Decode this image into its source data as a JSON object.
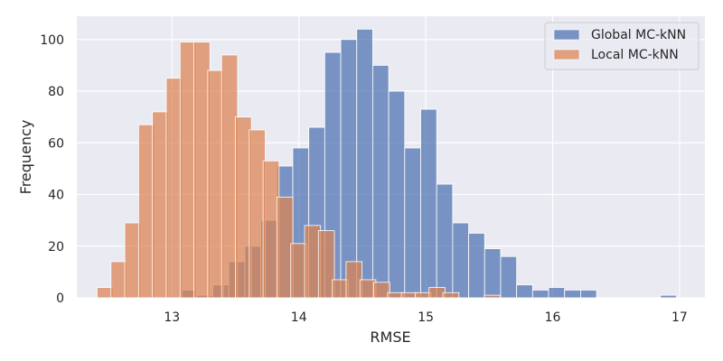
{
  "chart_data": {
    "type": "bar",
    "xlabel": "RMSE",
    "ylabel": "Frequency",
    "xlim": [
      12.25,
      17.2
    ],
    "ylim": [
      0,
      109
    ],
    "x_ticks": [
      13,
      14,
      15,
      16,
      17
    ],
    "y_ticks": [
      0,
      20,
      40,
      60,
      80,
      100
    ],
    "grid": true,
    "legend_position": "top-right",
    "bin_width": 0.126,
    "series": [
      {
        "name": "Global MC-kNN",
        "color": "#4c72b0",
        "bins": [
          {
            "x0": 13.07,
            "v": 3
          },
          {
            "x0": 13.196,
            "v": 1
          },
          {
            "x0": 13.322,
            "v": 5
          },
          {
            "x0": 13.448,
            "v": 14
          },
          {
            "x0": 13.574,
            "v": 20
          },
          {
            "x0": 13.7,
            "v": 30
          },
          {
            "x0": 13.826,
            "v": 51
          },
          {
            "x0": 13.952,
            "v": 58
          },
          {
            "x0": 14.078,
            "v": 66
          },
          {
            "x0": 14.204,
            "v": 95
          },
          {
            "x0": 14.33,
            "v": 100
          },
          {
            "x0": 14.456,
            "v": 104
          },
          {
            "x0": 14.582,
            "v": 90
          },
          {
            "x0": 14.708,
            "v": 80
          },
          {
            "x0": 14.834,
            "v": 58
          },
          {
            "x0": 14.96,
            "v": 73
          },
          {
            "x0": 15.086,
            "v": 44
          },
          {
            "x0": 15.212,
            "v": 29
          },
          {
            "x0": 15.338,
            "v": 25
          },
          {
            "x0": 15.464,
            "v": 19
          },
          {
            "x0": 15.59,
            "v": 16
          },
          {
            "x0": 15.716,
            "v": 5
          },
          {
            "x0": 15.842,
            "v": 3
          },
          {
            "x0": 15.968,
            "v": 4
          },
          {
            "x0": 16.094,
            "v": 3
          },
          {
            "x0": 16.22,
            "v": 3
          },
          {
            "x0": 16.85,
            "v": 1
          }
        ]
      },
      {
        "name": "Local MC-kNN",
        "color": "#dd8452",
        "bins": [
          {
            "x0": 12.41,
            "v": 4
          },
          {
            "x0": 12.519,
            "v": 14
          },
          {
            "x0": 12.628,
            "v": 29
          },
          {
            "x0": 12.737,
            "v": 67
          },
          {
            "x0": 12.846,
            "v": 72
          },
          {
            "x0": 12.955,
            "v": 85
          },
          {
            "x0": 13.064,
            "v": 99
          },
          {
            "x0": 13.173,
            "v": 99
          },
          {
            "x0": 13.282,
            "v": 88
          },
          {
            "x0": 13.391,
            "v": 94
          },
          {
            "x0": 13.5,
            "v": 70
          },
          {
            "x0": 13.609,
            "v": 65
          },
          {
            "x0": 13.718,
            "v": 53
          },
          {
            "x0": 13.827,
            "v": 39
          },
          {
            "x0": 13.936,
            "v": 21
          },
          {
            "x0": 14.045,
            "v": 28
          },
          {
            "x0": 14.154,
            "v": 26
          },
          {
            "x0": 14.263,
            "v": 7
          },
          {
            "x0": 14.372,
            "v": 14
          },
          {
            "x0": 14.481,
            "v": 7
          },
          {
            "x0": 14.59,
            "v": 6
          },
          {
            "x0": 14.699,
            "v": 2
          },
          {
            "x0": 14.808,
            "v": 2
          },
          {
            "x0": 14.917,
            "v": 2
          },
          {
            "x0": 15.026,
            "v": 4
          },
          {
            "x0": 15.135,
            "v": 2
          },
          {
            "x0": 15.462,
            "v": 1
          }
        ]
      }
    ]
  }
}
